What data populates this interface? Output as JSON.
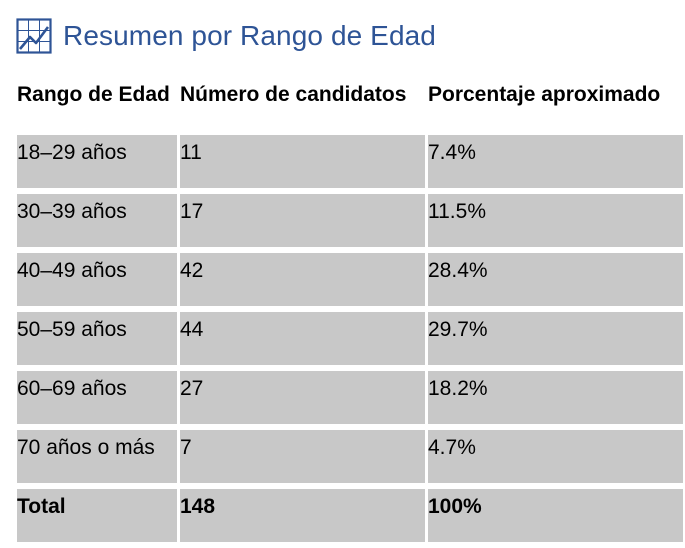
{
  "heading": {
    "icon": "line-chart-icon",
    "title": "Resumen por Rango de Edad"
  },
  "table": {
    "headers": [
      "Rango de Edad",
      "Número de candidatos",
      "Porcentaje aproximado"
    ],
    "rows": [
      [
        "18–29 años",
        "11",
        "7.4%"
      ],
      [
        "30–39 años",
        "17",
        "11.5%"
      ],
      [
        "40–49 años",
        "42",
        "28.4%"
      ],
      [
        "50–59 años",
        "44",
        "29.7%"
      ],
      [
        "60–69 años",
        "27",
        "18.2%"
      ],
      [
        "70 años o más",
        "7",
        "4.7%"
      ]
    ],
    "total": [
      "Total",
      "148",
      "100%"
    ]
  },
  "colors": {
    "heading": "#2e5496",
    "cell_fill": "#c8c8c8"
  }
}
